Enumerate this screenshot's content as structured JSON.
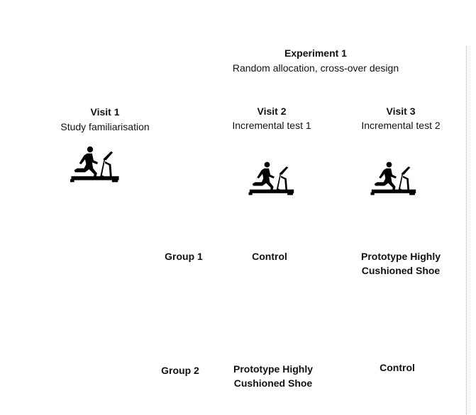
{
  "experiment": {
    "title": "Experiment 1",
    "subtitle": "Random allocation, cross-over design"
  },
  "visits": [
    {
      "title": "Visit 1",
      "subtitle": "Study familiarisation",
      "icon": "treadmill-runner-icon"
    },
    {
      "title": "Visit 2",
      "subtitle": "Incremental test 1",
      "icon": "treadmill-runner-icon"
    },
    {
      "title": "Visit 3",
      "subtitle": "Incremental test 2",
      "icon": "treadmill-runner-icon"
    }
  ],
  "groups": [
    {
      "label": "Group 1",
      "visit2": [
        "Control"
      ],
      "visit3": [
        "Prototype Highly",
        "Cushioned Shoe"
      ]
    },
    {
      "label": "Group 2",
      "visit2": [
        "Prototype Highly",
        "Cushioned Shoe"
      ],
      "visit3": [
        "Control"
      ]
    }
  ],
  "colors": {
    "icon": "#000000",
    "divider": "#9fb3c8"
  }
}
